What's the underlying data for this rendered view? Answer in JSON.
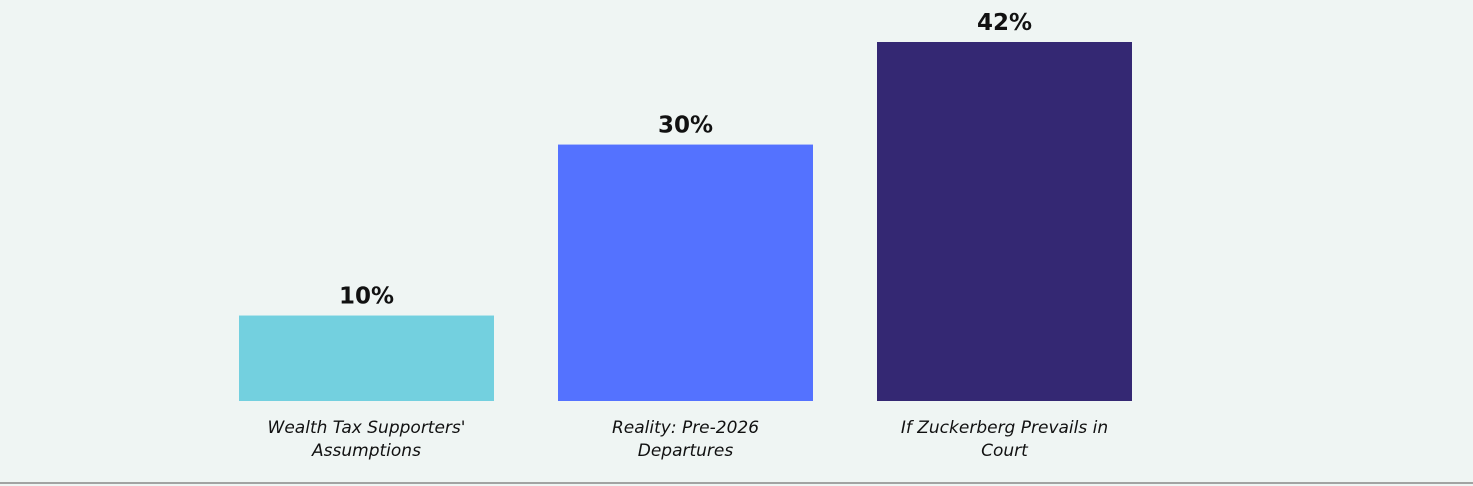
{
  "chart_data": {
    "type": "bar",
    "categories": [
      [
        "Wealth Tax Supporters'",
        "Assumptions"
      ],
      [
        "Reality: Pre-2026",
        "Departures"
      ],
      [
        "If Zuckerberg Prevails in",
        "Court"
      ]
    ],
    "values": [
      10,
      30,
      42
    ],
    "value_labels": [
      "10%",
      "30%",
      "42%"
    ],
    "colors": [
      "#73d0df",
      "#5472ff",
      "#342873"
    ],
    "title": "",
    "xlabel": "",
    "ylabel": "",
    "ylim": [
      0,
      42
    ],
    "grid": false,
    "legend": "none"
  },
  "style": {
    "background": "#eff5f3",
    "baseline_color": "#888888"
  }
}
